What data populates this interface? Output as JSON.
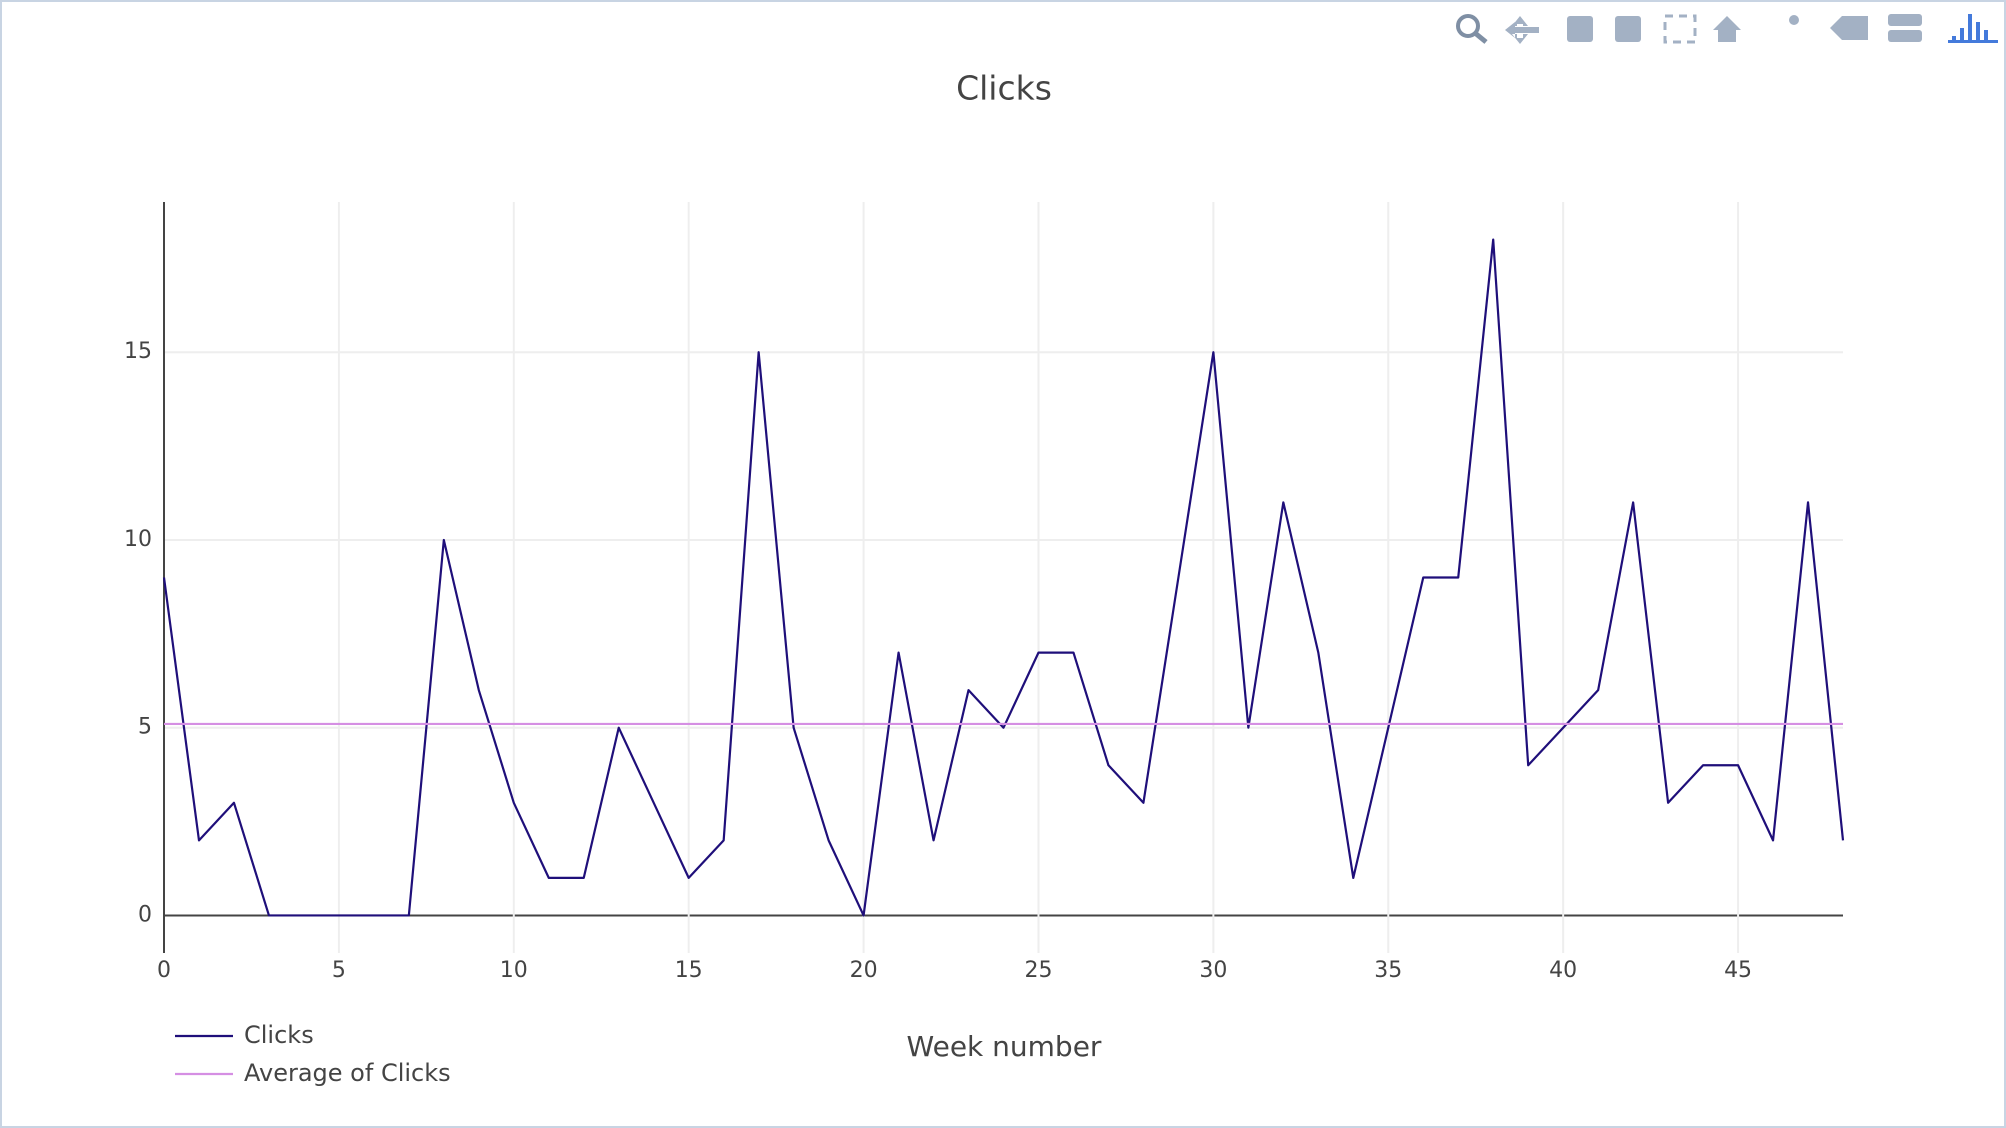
{
  "chart_data": {
    "type": "line",
    "title": "Clicks",
    "x_label": "Week number",
    "xlim": [
      0,
      48
    ],
    "ylim": [
      -1,
      19
    ],
    "xticks": [
      0,
      5,
      10,
      15,
      20,
      25,
      30,
      35,
      40,
      45
    ],
    "yticks": [
      0,
      5,
      10,
      15
    ],
    "grid": true,
    "legend": "bottom-left",
    "series": [
      {
        "name": "Clicks",
        "color": "#1f0f7a",
        "x": [
          0,
          1,
          2,
          3,
          4,
          5,
          6,
          7,
          8,
          9,
          10,
          11,
          12,
          13,
          14,
          15,
          16,
          17,
          18,
          19,
          20,
          21,
          22,
          23,
          24,
          25,
          26,
          27,
          28,
          29,
          30,
          31,
          32,
          33,
          34,
          35,
          36,
          37,
          38,
          39,
          40,
          41,
          42,
          43,
          44,
          45,
          46,
          47,
          48
        ],
        "values": [
          9,
          2,
          3,
          0,
          0,
          0,
          0,
          0,
          10,
          6,
          3,
          1,
          1,
          5,
          3,
          1,
          2,
          15,
          5,
          2,
          0,
          7,
          2,
          6,
          5,
          7,
          7,
          4,
          3,
          9,
          15,
          5,
          11,
          7,
          1,
          5,
          9,
          9,
          18,
          4,
          5,
          6,
          11,
          3,
          4,
          4,
          2,
          11,
          2
        ]
      },
      {
        "name": "Average of Clicks",
        "color": "#d58fe3",
        "x": [
          0,
          48
        ],
        "values": [
          5.1,
          5.1
        ]
      }
    ]
  }
}
